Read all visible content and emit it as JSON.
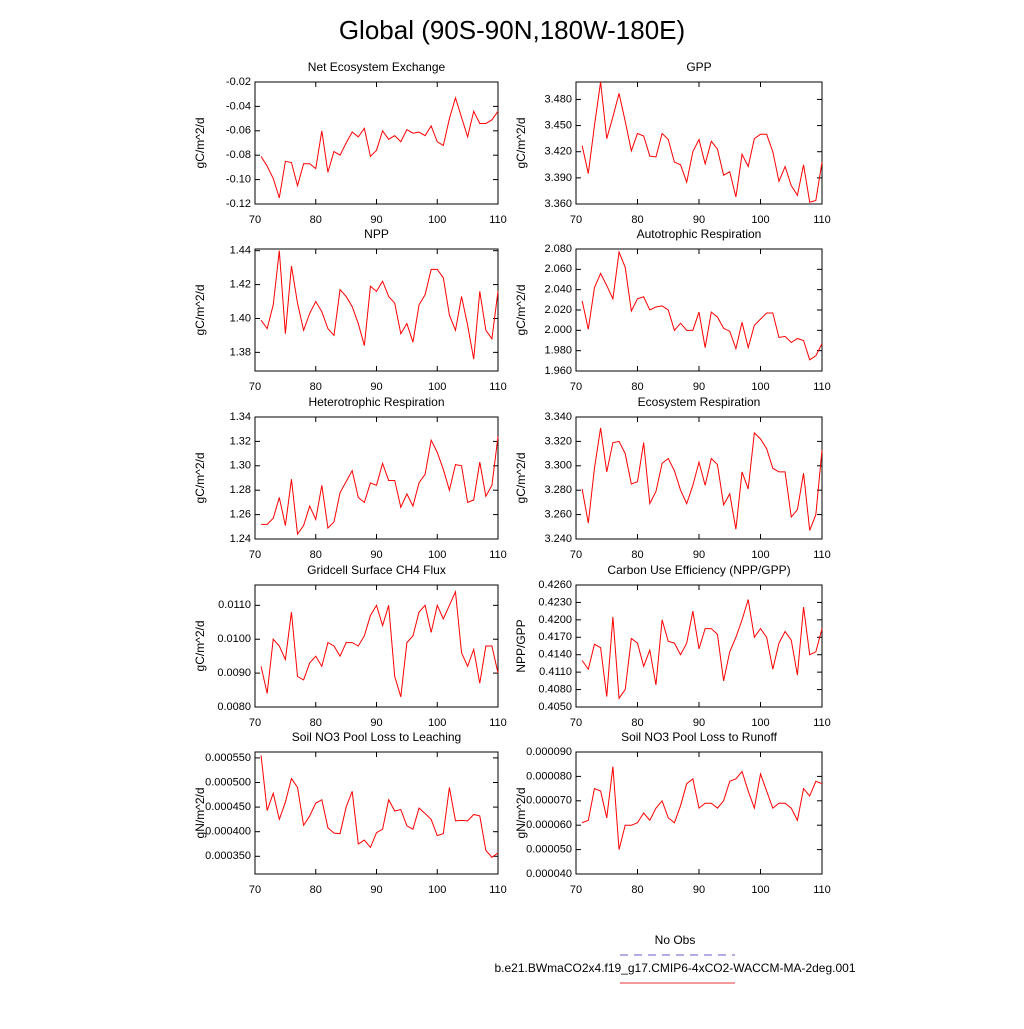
{
  "title": "Global (90S-90N,180W-180E)",
  "legend": [
    {
      "name": "No Obs",
      "color": "#6a5acd",
      "dashed": true
    },
    {
      "name": "b.e21.BWmaCO2x4.f19_g17.CMIP6-4xCO2-WACCM-MA-2deg.001",
      "color": "#e8303a",
      "dashed": false
    }
  ],
  "chart_data": [
    {
      "type": "line",
      "title": "Net Ecosystem Exchange",
      "ylabel": "gC/m^2/d",
      "color": "#ff0000",
      "x": [
        71,
        72,
        73,
        74,
        75,
        76,
        77,
        78,
        79,
        80,
        81,
        82,
        83,
        84,
        85,
        86,
        87,
        88,
        89,
        90,
        91,
        92,
        93,
        94,
        95,
        96,
        97,
        98,
        99,
        100,
        101,
        102,
        103,
        104,
        105,
        106,
        107,
        108,
        109,
        110
      ],
      "values": [
        -0.081,
        -0.089,
        -0.099,
        -0.115,
        -0.085,
        -0.086,
        -0.105,
        -0.087,
        -0.087,
        -0.091,
        -0.06,
        -0.094,
        -0.077,
        -0.08,
        -0.07,
        -0.061,
        -0.065,
        -0.058,
        -0.081,
        -0.076,
        -0.06,
        -0.067,
        -0.064,
        -0.069,
        -0.059,
        -0.062,
        -0.061,
        -0.064,
        -0.056,
        -0.069,
        -0.072,
        -0.05,
        -0.033,
        -0.049,
        -0.065,
        -0.044,
        -0.054,
        -0.054,
        -0.051,
        -0.044
      ],
      "xlim": [
        70,
        110
      ],
      "xticks": [
        70,
        80,
        90,
        100,
        110
      ],
      "ylim": [
        -0.12,
        -0.02
      ],
      "yticks": [
        -0.02,
        -0.04,
        -0.06,
        {
          "value": -0.08,
          "label": "-0.08"
        },
        {
          "value": -0.1,
          "label": "-0.10"
        },
        -0.12
      ]
    },
    {
      "type": "line",
      "title": "GPP",
      "ylabel": "gC/m^2/d",
      "color": "#ff0000",
      "x": [
        71,
        72,
        73,
        74,
        75,
        76,
        77,
        78,
        79,
        80,
        81,
        82,
        83,
        84,
        85,
        86,
        87,
        88,
        89,
        90,
        91,
        92,
        93,
        94,
        95,
        96,
        97,
        98,
        99,
        100,
        101,
        102,
        103,
        104,
        105,
        106,
        107,
        108,
        109,
        110
      ],
      "values": [
        3.427,
        3.395,
        3.45,
        3.5,
        3.435,
        3.46,
        3.487,
        3.455,
        3.421,
        3.441,
        3.438,
        3.415,
        3.414,
        3.441,
        3.434,
        3.408,
        3.405,
        3.385,
        3.42,
        3.434,
        3.406,
        3.432,
        3.423,
        3.393,
        3.397,
        3.368,
        3.417,
        3.403,
        3.435,
        3.44,
        3.44,
        3.42,
        3.386,
        3.403,
        3.381,
        3.37,
        3.405,
        3.362,
        3.364,
        3.408
      ],
      "xlim": [
        70,
        110
      ],
      "xticks": [
        70,
        80,
        90,
        100,
        110
      ],
      "ylim": [
        3.36,
        3.5
      ],
      "yticks": [
        {
          "value": 3.36,
          "label": "3.360"
        },
        {
          "value": 3.39,
          "label": "3.390"
        },
        {
          "value": 3.42,
          "label": "3.420"
        },
        {
          "value": 3.45,
          "label": "3.450"
        },
        {
          "value": 3.48,
          "label": "3.480"
        }
      ]
    },
    {
      "type": "line",
      "title": "NPP",
      "ylabel": "gC/m^2/d",
      "color": "#ff0000",
      "x": [
        71,
        72,
        73,
        74,
        75,
        76,
        77,
        78,
        79,
        80,
        81,
        82,
        83,
        84,
        85,
        86,
        87,
        88,
        89,
        90,
        91,
        92,
        93,
        94,
        95,
        96,
        97,
        98,
        99,
        100,
        101,
        102,
        103,
        104,
        105,
        106,
        107,
        108,
        109,
        110
      ],
      "values": [
        1.399,
        1.394,
        1.408,
        1.44,
        1.391,
        1.431,
        1.409,
        1.393,
        1.403,
        1.41,
        1.404,
        1.394,
        1.39,
        1.417,
        1.413,
        1.407,
        1.397,
        1.384,
        1.419,
        1.416,
        1.422,
        1.413,
        1.409,
        1.391,
        1.397,
        1.386,
        1.408,
        1.414,
        1.429,
        1.429,
        1.424,
        1.402,
        1.393,
        1.413,
        1.396,
        1.376,
        1.416,
        1.393,
        1.388,
        1.416
      ],
      "xlim": [
        70,
        110
      ],
      "xticks": [
        70,
        80,
        90,
        100,
        110
      ],
      "ylim": [
        1.369,
        1.441
      ],
      "yticks": [
        1.38,
        {
          "value": 1.4,
          "label": "1.40"
        },
        1.42,
        1.44
      ]
    },
    {
      "type": "line",
      "title": "Autotrophic Respiration",
      "ylabel": "gC/m^2/d",
      "color": "#ff0000",
      "x": [
        71,
        72,
        73,
        74,
        75,
        76,
        77,
        78,
        79,
        80,
        81,
        82,
        83,
        84,
        85,
        86,
        87,
        88,
        89,
        90,
        91,
        92,
        93,
        94,
        95,
        96,
        97,
        98,
        99,
        100,
        101,
        102,
        103,
        104,
        105,
        106,
        107,
        108,
        109,
        110
      ],
      "values": [
        2.029,
        2.001,
        2.042,
        2.056,
        2.044,
        2.031,
        2.077,
        2.062,
        2.019,
        2.031,
        2.033,
        2.02,
        2.023,
        2.024,
        2.02,
        2.0,
        2.007,
        2.0,
        2.0,
        2.018,
        1.983,
        2.018,
        2.013,
        2.002,
        1.999,
        1.982,
        2.008,
        1.983,
        2.005,
        2.011,
        2.017,
        2.017,
        1.993,
        1.994,
        1.988,
        1.992,
        1.99,
        1.971,
        1.975,
        1.987
      ],
      "xlim": [
        70,
        110
      ],
      "xticks": [
        70,
        80,
        90,
        100,
        110
      ],
      "ylim": [
        1.96,
        2.08
      ],
      "yticks": [
        {
          "value": 1.96,
          "label": "1.960"
        },
        {
          "value": 1.98,
          "label": "1.980"
        },
        {
          "value": 2.0,
          "label": "2.000"
        },
        {
          "value": 2.02,
          "label": "2.020"
        },
        {
          "value": 2.04,
          "label": "2.040"
        },
        {
          "value": 2.06,
          "label": "2.060"
        },
        {
          "value": 2.08,
          "label": "2.080"
        }
      ]
    },
    {
      "type": "line",
      "title": "Heterotrophic Respiration",
      "ylabel": "gC/m^2/d",
      "color": "#ff0000",
      "x": [
        71,
        72,
        73,
        74,
        75,
        76,
        77,
        78,
        79,
        80,
        81,
        82,
        83,
        84,
        85,
        86,
        87,
        88,
        89,
        90,
        91,
        92,
        93,
        94,
        95,
        96,
        97,
        98,
        99,
        100,
        101,
        102,
        103,
        104,
        105,
        106,
        107,
        108,
        109,
        110
      ],
      "values": [
        1.252,
        1.252,
        1.257,
        1.274,
        1.251,
        1.289,
        1.244,
        1.251,
        1.267,
        1.256,
        1.284,
        1.249,
        1.254,
        1.278,
        1.287,
        1.296,
        1.274,
        1.27,
        1.286,
        1.284,
        1.302,
        1.288,
        1.288,
        1.266,
        1.277,
        1.267,
        1.286,
        1.293,
        1.321,
        1.311,
        1.297,
        1.28,
        1.301,
        1.3,
        1.27,
        1.272,
        1.303,
        1.275,
        1.284,
        1.324
      ],
      "xlim": [
        70,
        110
      ],
      "xticks": [
        70,
        80,
        90,
        100,
        110
      ],
      "ylim": [
        1.24,
        1.34
      ],
      "yticks": [
        1.24,
        1.26,
        1.28,
        {
          "value": 1.3,
          "label": "1.30"
        },
        1.32,
        1.34
      ]
    },
    {
      "type": "line",
      "title": "Ecosystem Respiration",
      "ylabel": "gC/m^2/d",
      "color": "#ff0000",
      "x": [
        71,
        72,
        73,
        74,
        75,
        76,
        77,
        78,
        79,
        80,
        81,
        82,
        83,
        84,
        85,
        86,
        87,
        88,
        89,
        90,
        91,
        92,
        93,
        94,
        95,
        96,
        97,
        98,
        99,
        100,
        101,
        102,
        103,
        104,
        105,
        106,
        107,
        108,
        109,
        110
      ],
      "values": [
        3.281,
        3.253,
        3.298,
        3.331,
        3.295,
        3.319,
        3.32,
        3.31,
        3.285,
        3.287,
        3.319,
        3.269,
        3.279,
        3.302,
        3.306,
        3.296,
        3.28,
        3.269,
        3.284,
        3.303,
        3.284,
        3.306,
        3.301,
        3.268,
        3.277,
        3.248,
        3.295,
        3.281,
        3.327,
        3.322,
        3.314,
        3.298,
        3.295,
        3.295,
        3.258,
        3.264,
        3.294,
        3.247,
        3.26,
        3.313
      ],
      "xlim": [
        70,
        110
      ],
      "xticks": [
        70,
        80,
        90,
        100,
        110
      ],
      "ylim": [
        3.24,
        3.34
      ],
      "yticks": [
        {
          "value": 3.24,
          "label": "3.240"
        },
        {
          "value": 3.26,
          "label": "3.260"
        },
        {
          "value": 3.28,
          "label": "3.280"
        },
        {
          "value": 3.3,
          "label": "3.300"
        },
        {
          "value": 3.32,
          "label": "3.320"
        },
        {
          "value": 3.34,
          "label": "3.340"
        }
      ]
    },
    {
      "type": "line",
      "title": "Gridcell Surface CH4 Flux",
      "ylabel": "gC/m^2/d",
      "color": "#ff0000",
      "x": [
        71,
        72,
        73,
        74,
        75,
        76,
        77,
        78,
        79,
        80,
        81,
        82,
        83,
        84,
        85,
        86,
        87,
        88,
        89,
        90,
        91,
        92,
        93,
        94,
        95,
        96,
        97,
        98,
        99,
        100,
        101,
        102,
        103,
        104,
        105,
        106,
        107,
        108,
        109,
        110
      ],
      "values": [
        0.0092,
        0.0084,
        0.01,
        0.0098,
        0.0094,
        0.0108,
        0.0089,
        0.0088,
        0.0093,
        0.0095,
        0.0092,
        0.0099,
        0.0098,
        0.0095,
        0.0099,
        0.0099,
        0.0098,
        0.0101,
        0.0107,
        0.011,
        0.0104,
        0.011,
        0.0089,
        0.0083,
        0.0099,
        0.0101,
        0.0108,
        0.011,
        0.0102,
        0.011,
        0.0106,
        0.011,
        0.0114,
        0.0096,
        0.0092,
        0.0097,
        0.0087,
        0.0098,
        0.0098,
        0.009
      ],
      "xlim": [
        70,
        110
      ],
      "xticks": [
        70,
        80,
        90,
        100,
        110
      ],
      "ylim": [
        0.008,
        0.0116
      ],
      "yticks": [
        {
          "value": 0.008,
          "label": "0.0080"
        },
        {
          "value": 0.009,
          "label": "0.0090"
        },
        {
          "value": 0.01,
          "label": "0.0100"
        },
        {
          "value": 0.011,
          "label": "0.0110"
        }
      ]
    },
    {
      "type": "line",
      "title": "Carbon Use Efficiency (NPP/GPP)",
      "ylabel": "NPP/GPP",
      "color": "#ff0000",
      "x": [
        71,
        72,
        73,
        74,
        75,
        76,
        77,
        78,
        79,
        80,
        81,
        82,
        83,
        84,
        85,
        86,
        87,
        88,
        89,
        90,
        91,
        92,
        93,
        94,
        95,
        96,
        97,
        98,
        99,
        100,
        101,
        102,
        103,
        104,
        105,
        106,
        107,
        108,
        109,
        110
      ],
      "values": [
        0.413,
        0.4115,
        0.4158,
        0.4152,
        0.4068,
        0.4205,
        0.4065,
        0.408,
        0.4168,
        0.416,
        0.412,
        0.4148,
        0.4088,
        0.42,
        0.4163,
        0.416,
        0.414,
        0.416,
        0.4215,
        0.415,
        0.4185,
        0.4185,
        0.4175,
        0.4095,
        0.4145,
        0.417,
        0.42,
        0.4235,
        0.417,
        0.4185,
        0.417,
        0.4115,
        0.416,
        0.418,
        0.4165,
        0.4105,
        0.4222,
        0.414,
        0.4145,
        0.4185
      ],
      "xlim": [
        70,
        110
      ],
      "xticks": [
        70,
        80,
        90,
        100,
        110
      ],
      "ylim": [
        0.405,
        0.426
      ],
      "yticks": [
        {
          "value": 0.405,
          "label": "0.4050"
        },
        {
          "value": 0.408,
          "label": "0.4080"
        },
        {
          "value": 0.411,
          "label": "0.4110"
        },
        {
          "value": 0.414,
          "label": "0.4140"
        },
        {
          "value": 0.417,
          "label": "0.4170"
        },
        {
          "value": 0.42,
          "label": "0.4200"
        },
        {
          "value": 0.423,
          "label": "0.4230"
        },
        {
          "value": 0.426,
          "label": "0.4260"
        }
      ]
    },
    {
      "type": "line",
      "title": "Soil NO3 Pool Loss to Leaching",
      "ylabel": "gN/m^2/d",
      "color": "#ff0000",
      "x": [
        71,
        72,
        73,
        74,
        75,
        76,
        77,
        78,
        79,
        80,
        81,
        82,
        83,
        84,
        85,
        86,
        87,
        88,
        89,
        90,
        91,
        92,
        93,
        94,
        95,
        96,
        97,
        98,
        99,
        100,
        101,
        102,
        103,
        104,
        105,
        106,
        107,
        108,
        109,
        110
      ],
      "values": [
        0.000555,
        0.000443,
        0.000478,
        0.000425,
        0.00046,
        0.000508,
        0.00049,
        0.000413,
        0.000432,
        0.000458,
        0.000465,
        0.000408,
        0.000397,
        0.000396,
        0.00045,
        0.000482,
        0.000375,
        0.000383,
        0.000368,
        0.000398,
        0.000405,
        0.000465,
        0.000442,
        0.000445,
        0.000412,
        0.000405,
        0.000448,
        0.000437,
        0.000425,
        0.000392,
        0.000396,
        0.00049,
        0.000422,
        0.000423,
        0.000422,
        0.000435,
        0.000432,
        0.000362,
        0.000348,
        0.000357
      ],
      "xlim": [
        70,
        110
      ],
      "xticks": [
        70,
        80,
        90,
        100,
        110
      ],
      "ylim": [
        0.000314,
        0.000562
      ],
      "yticks": [
        {
          "value": 0.00035,
          "label": "0.000350"
        },
        {
          "value": 0.0004,
          "label": "0.000400"
        },
        {
          "value": 0.00045,
          "label": "0.000450"
        },
        {
          "value": 0.0005,
          "label": "0.000500"
        },
        {
          "value": 0.00055,
          "label": "0.000550"
        }
      ]
    },
    {
      "type": "line",
      "title": "Soil NO3 Pool Loss to Runoff",
      "ylabel": "gN/m^2/d",
      "color": "#ff0000",
      "x": [
        71,
        72,
        73,
        74,
        75,
        76,
        77,
        78,
        79,
        80,
        81,
        82,
        83,
        84,
        85,
        86,
        87,
        88,
        89,
        90,
        91,
        92,
        93,
        94,
        95,
        96,
        97,
        98,
        99,
        100,
        101,
        102,
        103,
        104,
        105,
        106,
        107,
        108,
        109,
        110
      ],
      "values": [
        6.1e-05,
        6.2e-05,
        7.5e-05,
        7.4e-05,
        6.3e-05,
        8.4e-05,
        5e-05,
        6e-05,
        6e-05,
        6.1e-05,
        6.5e-05,
        6.2e-05,
        6.7e-05,
        7e-05,
        6.3e-05,
        6.1e-05,
        6.8e-05,
        7.7e-05,
        7.9e-05,
        6.7e-05,
        6.9e-05,
        6.9e-05,
        6.7e-05,
        7e-05,
        7.8e-05,
        7.9e-05,
        8.2e-05,
        7.4e-05,
        6.7e-05,
        8.1e-05,
        7.4e-05,
        6.7e-05,
        6.9e-05,
        6.9e-05,
        6.7e-05,
        6.2e-05,
        7.5e-05,
        7.2e-05,
        7.8e-05,
        7.7e-05
      ],
      "xlim": [
        70,
        110
      ],
      "xticks": [
        70,
        80,
        90,
        100,
        110
      ],
      "ylim": [
        4e-05,
        9e-05
      ],
      "yticks": [
        {
          "value": 4e-05,
          "label": "0.000040"
        },
        {
          "value": 5e-05,
          "label": "0.000050"
        },
        {
          "value": 6e-05,
          "label": "0.000060"
        },
        {
          "value": 7e-05,
          "label": "0.000070"
        },
        {
          "value": 8e-05,
          "label": "0.000080"
        },
        {
          "value": 9e-05,
          "label": "0.000090"
        }
      ]
    }
  ]
}
